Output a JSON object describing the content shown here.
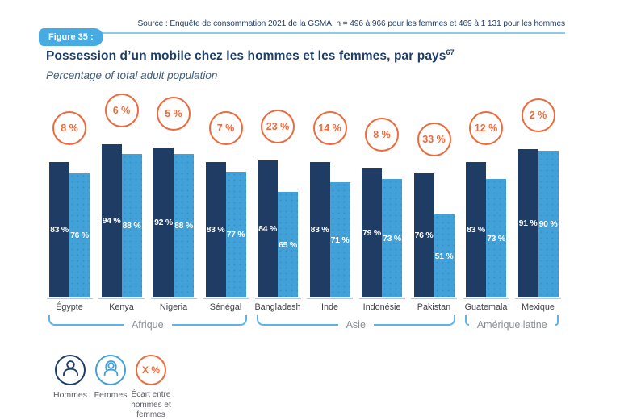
{
  "header": {
    "source_note": "Source : Enquête de consommation 2021 de la GSMA, n = 496 à 966 pour les femmes et 469 à 1 131 pour les hommes",
    "figure_label": "Figure 35 :",
    "title": "Possession d’un mobile chez les hommes et les femmes, par pays",
    "title_superscript": "67",
    "subtitle": "Percentage of total adult population"
  },
  "chart_data": {
    "type": "bar",
    "title": "Possession d’un mobile chez les hommes et les femmes, par pays",
    "subtitle": "Percentage of total adult population",
    "unit": "%",
    "ylim": [
      0,
      100
    ],
    "grid": false,
    "legend_position": "bottom-left",
    "categories": [
      "Égypte",
      "Kenya",
      "Nigeria",
      "Sénégal",
      "Bangladesh",
      "Inde",
      "Indonésie",
      "Pakistan",
      "Guatemala",
      "Mexique"
    ],
    "series": [
      {
        "name": "Hommes",
        "color": "#1e3c64",
        "values": [
          83,
          94,
          92,
          83,
          84,
          83,
          79,
          76,
          83,
          91
        ]
      },
      {
        "name": "Femmes",
        "color": "#41a1d8",
        "values": [
          76,
          88,
          88,
          77,
          65,
          71,
          73,
          51,
          73,
          90
        ]
      }
    ],
    "gap_circles": {
      "color": "#ed6a3c",
      "values": [
        8,
        6,
        5,
        7,
        23,
        14,
        8,
        33,
        12,
        2
      ]
    },
    "regions": [
      {
        "label": "Afrique",
        "from": 0,
        "to": 3
      },
      {
        "label": "Asie",
        "from": 4,
        "to": 7
      },
      {
        "label": "Amérique latine",
        "from": 8,
        "to": 9
      }
    ]
  },
  "legend": {
    "hommes_label": "Hommes",
    "femmes_label": "Femmes",
    "gap_symbol": "X %",
    "gap_caption": "Écart entre hommes et femmes"
  }
}
